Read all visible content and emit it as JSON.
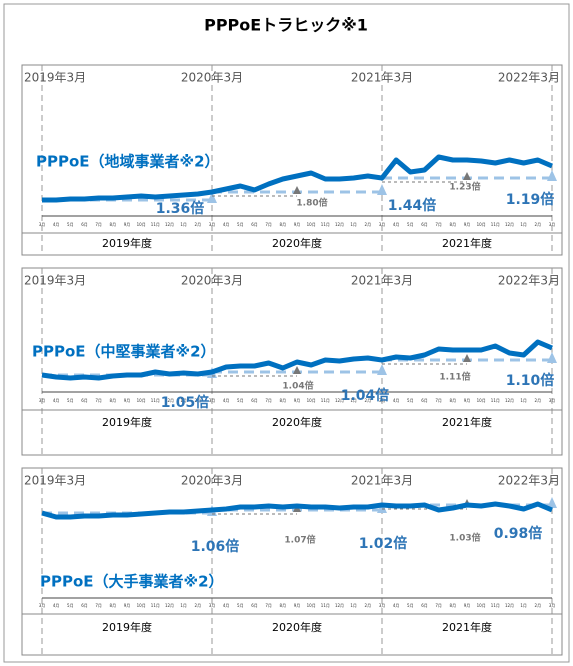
{
  "title": "PPPoEトラヒック※1",
  "chart_data": [
    {
      "type": "line",
      "series": [
        {
          "name": "PPPoE（地域事業者※2）",
          "color": "#0070c0",
          "values": [
            10,
            10,
            11,
            11,
            12,
            12,
            13,
            14,
            13,
            14,
            15,
            16,
            18,
            21,
            24,
            20,
            26,
            31,
            34,
            37,
            31,
            31,
            32,
            34,
            32,
            50,
            38,
            40,
            53,
            50,
            50,
            49,
            47,
            50,
            47,
            50,
            44
          ]
        }
      ],
      "categories": [
        "3月",
        "4月",
        "5月",
        "6月",
        "7月",
        "8月",
        "9月",
        "10月",
        "11月",
        "12月",
        "1月",
        "2月",
        "3月",
        "4月",
        "5月",
        "6月",
        "7月",
        "8月",
        "9月",
        "10月",
        "11月",
        "12月",
        "1月",
        "2月",
        "3月",
        "4月",
        "5月",
        "6月",
        "7月",
        "8月",
        "9月",
        "10月",
        "11月",
        "12月",
        "1月",
        "2月",
        "3月"
      ],
      "year_markers": [
        "2019年3月",
        "2020年3月",
        "2021年3月",
        "2022年3月"
      ],
      "fiscal_years": [
        "2019年度",
        "2020年度",
        "2021年度"
      ],
      "annotations": [
        "1.36倍",
        "1.80倍",
        "1.44倍",
        "1.23倍",
        "1.19倍"
      ]
    },
    {
      "type": "line",
      "series": [
        {
          "name": "PPPoE（中堅事業者※2）",
          "color": "#0070c0",
          "values": [
            15,
            13,
            12,
            13,
            12,
            14,
            15,
            15,
            18,
            16,
            17,
            16,
            18,
            23,
            24,
            24,
            27,
            22,
            28,
            25,
            30,
            29,
            31,
            32,
            30,
            33,
            32,
            35,
            41,
            40,
            40,
            40,
            44,
            37,
            35,
            48,
            42
          ]
        }
      ],
      "categories": [
        "3月",
        "4月",
        "5月",
        "6月",
        "7月",
        "8月",
        "9月",
        "10月",
        "11月",
        "12月",
        "1月",
        "2月",
        "3月",
        "4月",
        "5月",
        "6月",
        "7月",
        "8月",
        "9月",
        "10月",
        "11月",
        "12月",
        "1月",
        "2月",
        "3月",
        "4月",
        "5月",
        "6月",
        "7月",
        "8月",
        "9月",
        "10月",
        "11月",
        "12月",
        "1月",
        "2月",
        "3月"
      ],
      "year_markers": [
        "2019年3月",
        "2020年3月",
        "2021年3月",
        "2022年3月"
      ],
      "fiscal_years": [
        "2019年度",
        "2020年度",
        "2021年度"
      ],
      "annotations": [
        "1.05倍",
        "1.04倍",
        "1.04倍",
        "1.11倍",
        "1.10倍"
      ]
    },
    {
      "type": "line",
      "series": [
        {
          "name": "PPPoE（大手事業者※2）",
          "color": "#0070c0",
          "values": [
            12,
            8,
            8,
            9,
            9,
            10,
            10,
            11,
            12,
            13,
            13,
            14,
            15,
            16,
            18,
            18,
            19,
            18,
            19,
            18,
            18,
            17,
            18,
            18,
            20,
            19,
            19,
            20,
            15,
            17,
            20,
            19,
            21,
            19,
            16,
            21,
            15
          ]
        }
      ],
      "categories": [
        "3月",
        "4月",
        "5月",
        "6月",
        "7月",
        "8月",
        "9月",
        "10月",
        "11月",
        "12月",
        "1月",
        "2月",
        "3月",
        "4月",
        "5月",
        "6月",
        "7月",
        "8月",
        "9月",
        "10月",
        "11月",
        "12月",
        "1月",
        "2月",
        "3月",
        "4月",
        "5月",
        "6月",
        "7月",
        "8月",
        "9月",
        "10月",
        "11月",
        "12月",
        "1月",
        "2月",
        "3月"
      ],
      "year_markers": [
        "2019年3月",
        "2020年3月",
        "2021年3月",
        "2022年3月"
      ],
      "fiscal_years": [
        "2019年度",
        "2020年度",
        "2021年度"
      ],
      "annotations": [
        "1.06倍",
        "1.07倍",
        "1.02倍",
        "1.03倍",
        "0.98倍"
      ]
    }
  ]
}
